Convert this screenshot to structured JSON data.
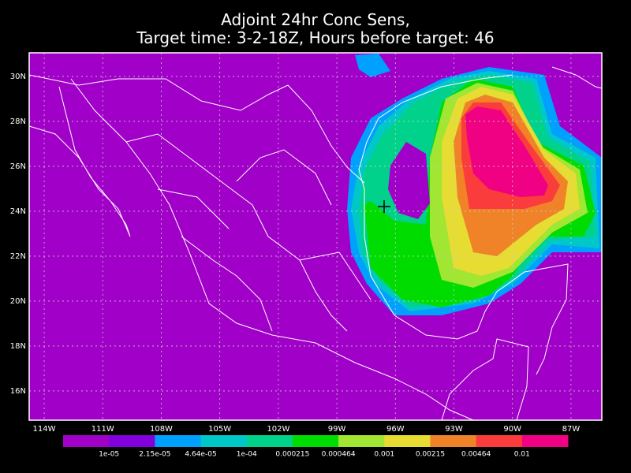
{
  "title_lines": [
    "Adjoint 24hr Conc Sens,",
    "Target time: 3-2-18Z, Hours before target: 46"
  ],
  "map": {
    "xlim": [
      -114.77,
      -85.42
    ],
    "ylim": [
      14.7,
      31.05
    ],
    "xticks": [
      {
        "value": -114,
        "label": "114W"
      },
      {
        "value": -111,
        "label": "111W"
      },
      {
        "value": -108,
        "label": "108W"
      },
      {
        "value": -105,
        "label": "105W"
      },
      {
        "value": -102,
        "label": "102W"
      },
      {
        "value": -99,
        "label": "99W"
      },
      {
        "value": -96,
        "label": "96W"
      },
      {
        "value": -93,
        "label": "93W"
      },
      {
        "value": -90,
        "label": "90W"
      },
      {
        "value": -87,
        "label": "87W"
      }
    ],
    "yticks": [
      {
        "value": 16,
        "label": "16N"
      },
      {
        "value": 18,
        "label": "18N"
      },
      {
        "value": 20,
        "label": "20N"
      },
      {
        "value": 22,
        "label": "22N"
      },
      {
        "value": 24,
        "label": "24N"
      },
      {
        "value": 26,
        "label": "26N"
      },
      {
        "value": 28,
        "label": "28N"
      },
      {
        "value": 30,
        "label": "30N"
      }
    ],
    "grid": true
  },
  "colorbar": {
    "colors": [
      "#a000c8",
      "#8200dc",
      "#00a0ff",
      "#00c8c8",
      "#00d28c",
      "#00dc00",
      "#a0e632",
      "#e6dc32",
      "#f08228",
      "#fa3c3c",
      "#f00082"
    ],
    "levels": [
      {
        "value": 1e-05,
        "label": "1e-05"
      },
      {
        "value": 2.15e-05,
        "label": "2.15e-05"
      },
      {
        "value": 4.64e-05,
        "label": "4.64e-05"
      },
      {
        "value": 0.0001,
        "label": "1e-04"
      },
      0.000215,
      0.000464,
      0.001,
      0.00215,
      0.00464,
      0.01
    ]
  }
}
